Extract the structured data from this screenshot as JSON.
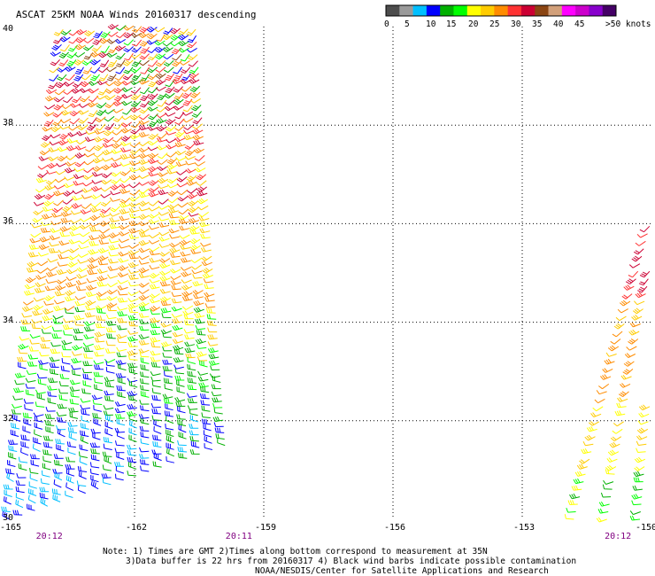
{
  "title": "ASCAT 25KM NOAA Winds 20160317 descending",
  "legend": {
    "colors": [
      "#4d4d4d",
      "#9a9a9a",
      "#00bfff",
      "#0000ff",
      "#00b000",
      "#00ff00",
      "#ffff00",
      "#ffcc00",
      "#ff8c00",
      "#ff3333",
      "#cc0033",
      "#8b4513",
      "#d2a07a",
      "#ff00ff",
      "#cc00cc",
      "#8800cc",
      "#440066"
    ],
    "labels": [
      "0",
      "5",
      "10",
      "15",
      "20",
      "25",
      "30",
      "35",
      "40",
      "45",
      ">50 knots"
    ]
  },
  "axes": {
    "longitude_ticks": [
      "-165",
      "-162",
      "-159",
      "-156",
      "-153",
      "-150"
    ],
    "latitude_ticks": [
      "40",
      "38",
      "36",
      "34",
      "32",
      "30"
    ],
    "longitude_range": [
      -165,
      -150
    ],
    "latitude_range": [
      30,
      40
    ],
    "grid": "dotted"
  },
  "pass_times": [
    {
      "label": "20:12",
      "lon": -164
    },
    {
      "label": "20:11",
      "lon": -159.6
    },
    {
      "label": "20:12",
      "lon": -150.8
    }
  ],
  "swaths": [
    {
      "name": "west swath",
      "corners_lonlat": [
        [
          -163.6,
          40.4
        ],
        [
          -160.6,
          40.2
        ],
        [
          -159.9,
          31.5
        ],
        [
          -164.9,
          30.0
        ]
      ],
      "wind_bands": [
        {
          "lat_top": 40.3,
          "lat_bottom": 39.0,
          "colors": [
            "#8b4513",
            "#cc0033",
            "#00b000",
            "#0000ff",
            "#ffcc00",
            "#ff8c00",
            "#ff3333",
            "#00ff00"
          ],
          "dir": 225
        },
        {
          "lat_top": 39.0,
          "lat_bottom": 38.0,
          "colors": [
            "#cc0033",
            "#cc0033",
            "#ff3333",
            "#ff8c00",
            "#ffcc00",
            "#00b000"
          ],
          "dir": 230
        },
        {
          "lat_top": 38.0,
          "lat_bottom": 36.2,
          "colors": [
            "#cc0033",
            "#ff3333",
            "#ff8c00",
            "#ffcc00",
            "#ffff00"
          ],
          "dir": 240
        },
        {
          "lat_top": 36.2,
          "lat_bottom": 34.3,
          "colors": [
            "#ff8c00",
            "#ffcc00",
            "#ffff00",
            "#ff8c00"
          ],
          "dir": 250
        },
        {
          "lat_top": 34.3,
          "lat_bottom": 33.2,
          "colors": [
            "#ffff00",
            "#ffcc00",
            "#00ff00",
            "#00b000"
          ],
          "dir": 260
        },
        {
          "lat_top": 33.2,
          "lat_bottom": 32.0,
          "colors": [
            "#00b000",
            "#00ff00",
            "#00b000",
            "#0000ff"
          ],
          "dir": 270
        },
        {
          "lat_top": 32.0,
          "lat_bottom": 30.8,
          "colors": [
            "#0000ff",
            "#0000ff",
            "#00b000",
            "#00bfff"
          ],
          "dir": 280
        },
        {
          "lat_top": 30.8,
          "lat_bottom": 29.9,
          "colors": [
            "#00bfff",
            "#00bfff",
            "#0000ff"
          ],
          "dir": 285
        }
      ]
    },
    {
      "name": "east swath",
      "corners_lonlat": [
        [
          -150.0,
          36.1
        ],
        [
          -149.5,
          36.1
        ],
        [
          -149.5,
          30.0
        ],
        [
          -151.8,
          30.0
        ]
      ],
      "wind_bands": [
        {
          "lat_top": 36.1,
          "lat_bottom": 34.5,
          "colors": [
            "#cc0033",
            "#ff3333"
          ],
          "dir": 230
        },
        {
          "lat_top": 34.5,
          "lat_bottom": 32.4,
          "colors": [
            "#ff8c00",
            "#ffcc00",
            "#ff8c00"
          ],
          "dir": 240
        },
        {
          "lat_top": 32.4,
          "lat_bottom": 31.0,
          "colors": [
            "#ffff00",
            "#ffcc00"
          ],
          "dir": 250
        },
        {
          "lat_top": 31.0,
          "lat_bottom": 30.0,
          "colors": [
            "#00b000",
            "#ffff00",
            "#00ff00"
          ],
          "dir": 260
        }
      ]
    }
  ],
  "notes": [
    "Note: 1) Times are GMT 2)Times along bottom correspond to measurement at 35N",
    "3)Data buffer is 22 hrs from 20160317 4) Black wind barbs indicate possible contamination",
    "NOAA/NESDIS/Center for Satellite Applications and Research"
  ]
}
